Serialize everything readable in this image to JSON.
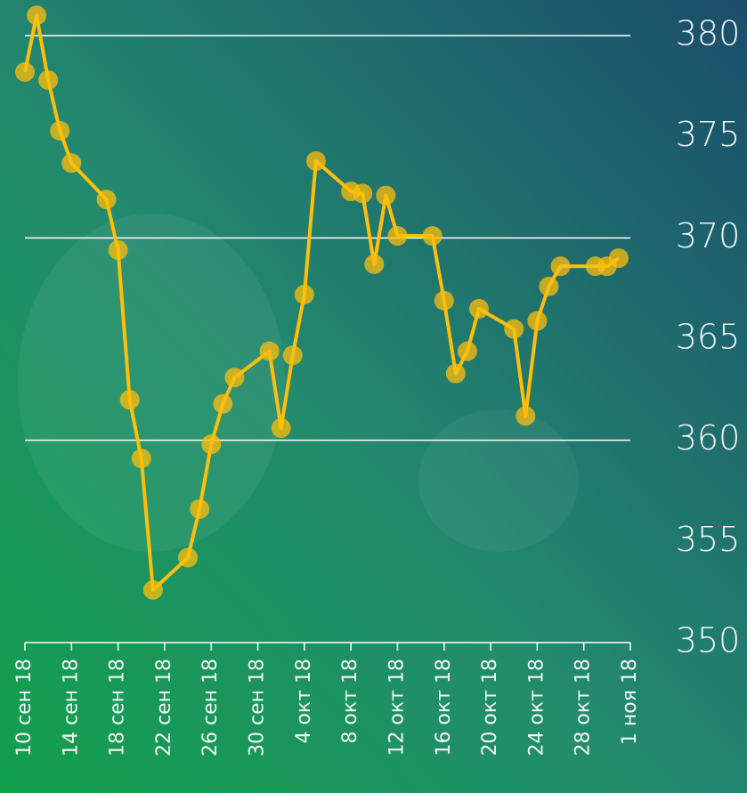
{
  "chart_data": {
    "type": "line",
    "x": [
      "2018-09-10",
      "2018-09-11",
      "2018-09-12",
      "2018-09-13",
      "2018-09-14",
      "2018-09-17",
      "2018-09-18",
      "2018-09-19",
      "2018-09-20",
      "2018-09-21",
      "2018-09-24",
      "2018-09-25",
      "2018-09-26",
      "2018-09-27",
      "2018-09-28",
      "2018-10-01",
      "2018-10-02",
      "2018-10-03",
      "2018-10-04",
      "2018-10-05",
      "2018-10-08",
      "2018-10-09",
      "2018-10-10",
      "2018-10-11",
      "2018-10-12",
      "2018-10-15",
      "2018-10-16",
      "2018-10-17",
      "2018-10-18",
      "2018-10-19",
      "2018-10-22",
      "2018-10-23",
      "2018-10-24",
      "2018-10-25",
      "2018-10-26",
      "2018-10-29",
      "2018-10-30",
      "2018-10-31"
    ],
    "series": [
      {
        "color": "#ffbe0b",
        "values": [
          378.2,
          381.0,
          377.8,
          375.3,
          373.7,
          371.9,
          369.4,
          362.0,
          359.1,
          352.6,
          354.2,
          356.6,
          359.8,
          361.8,
          363.1,
          364.4,
          360.6,
          364.2,
          367.2,
          373.8,
          372.3,
          372.2,
          368.7,
          372.1,
          370.1,
          370.1,
          366.9,
          363.3,
          364.4,
          366.5,
          365.5,
          361.2,
          365.9,
          367.6,
          368.6,
          368.6,
          368.6,
          369.0
        ]
      }
    ],
    "xlim": [
      "2018-09-10",
      "2018-11-01"
    ],
    "xticks": [
      {
        "value": "2018-09-10",
        "label": "10 сен 18"
      },
      {
        "value": "2018-09-14",
        "label": "14 сен 18"
      },
      {
        "value": "2018-09-18",
        "label": "18 сен 18"
      },
      {
        "value": "2018-09-22",
        "label": "22 сен 18"
      },
      {
        "value": "2018-09-26",
        "label": "26 сен 18"
      },
      {
        "value": "2018-09-30",
        "label": "30 сен 18"
      },
      {
        "value": "2018-10-04",
        "label": "4 окт 18"
      },
      {
        "value": "2018-10-08",
        "label": "8 окт 18"
      },
      {
        "value": "2018-10-12",
        "label": "12 окт 18"
      },
      {
        "value": "2018-10-16",
        "label": "16 окт 18"
      },
      {
        "value": "2018-10-20",
        "label": "20 окт 18"
      },
      {
        "value": "2018-10-24",
        "label": "24 окт 18"
      },
      {
        "value": "2018-10-28",
        "label": "28 окт 18"
      },
      {
        "value": "2018-11-01",
        "label": "1 ноя 18"
      }
    ],
    "ylim": [
      350,
      380
    ],
    "yticks": [
      350,
      355,
      360,
      365,
      370,
      375,
      380
    ],
    "grid_lines": [
      360,
      370,
      380
    ]
  }
}
